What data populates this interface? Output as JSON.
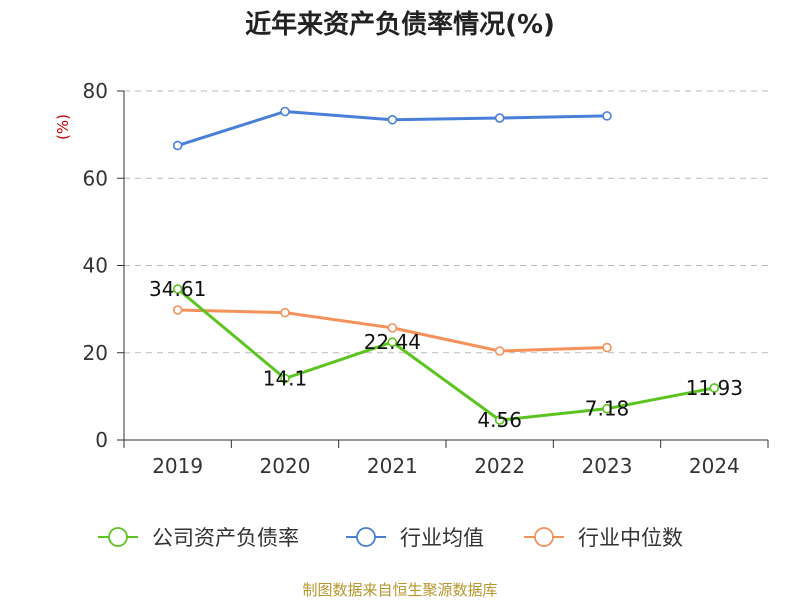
{
  "title": "近年来资产负债率情况(%)",
  "footer": "制图数据来自恒生聚源数据库",
  "colors": {
    "company": "#5cc41f",
    "industry_avg": "#4a7fd9",
    "industry_median": "#f5915a",
    "unit": "#cc0000",
    "axis": "#333333",
    "grid": "#bbbbbb"
  },
  "chart_data": {
    "type": "line",
    "title": "近年来资产负债率情况(%)",
    "ylabel": "(%)",
    "xlabel": "",
    "categories": [
      "2019",
      "2020",
      "2021",
      "2022",
      "2023",
      "2024"
    ],
    "ylim": [
      0,
      80
    ],
    "yticks": [
      0,
      20,
      40,
      60,
      80
    ],
    "grid": true,
    "legend_position": "bottom",
    "series": [
      {
        "name": "公司资产负债率",
        "color": "#5cc41f",
        "values": [
          34.61,
          14.1,
          22.44,
          4.56,
          7.18,
          11.93
        ],
        "labels": [
          "34.61",
          "14.1",
          "22.44",
          "4.56",
          "7.18",
          "11.93"
        ]
      },
      {
        "name": "行业均值",
        "color": "#4a7fd9",
        "values": [
          67.5,
          75.3,
          73.4,
          73.8,
          74.3,
          null
        ],
        "labels": []
      },
      {
        "name": "行业中位数",
        "color": "#f5915a",
        "values": [
          29.8,
          29.2,
          25.7,
          20.4,
          21.2,
          null
        ],
        "labels": []
      }
    ]
  }
}
